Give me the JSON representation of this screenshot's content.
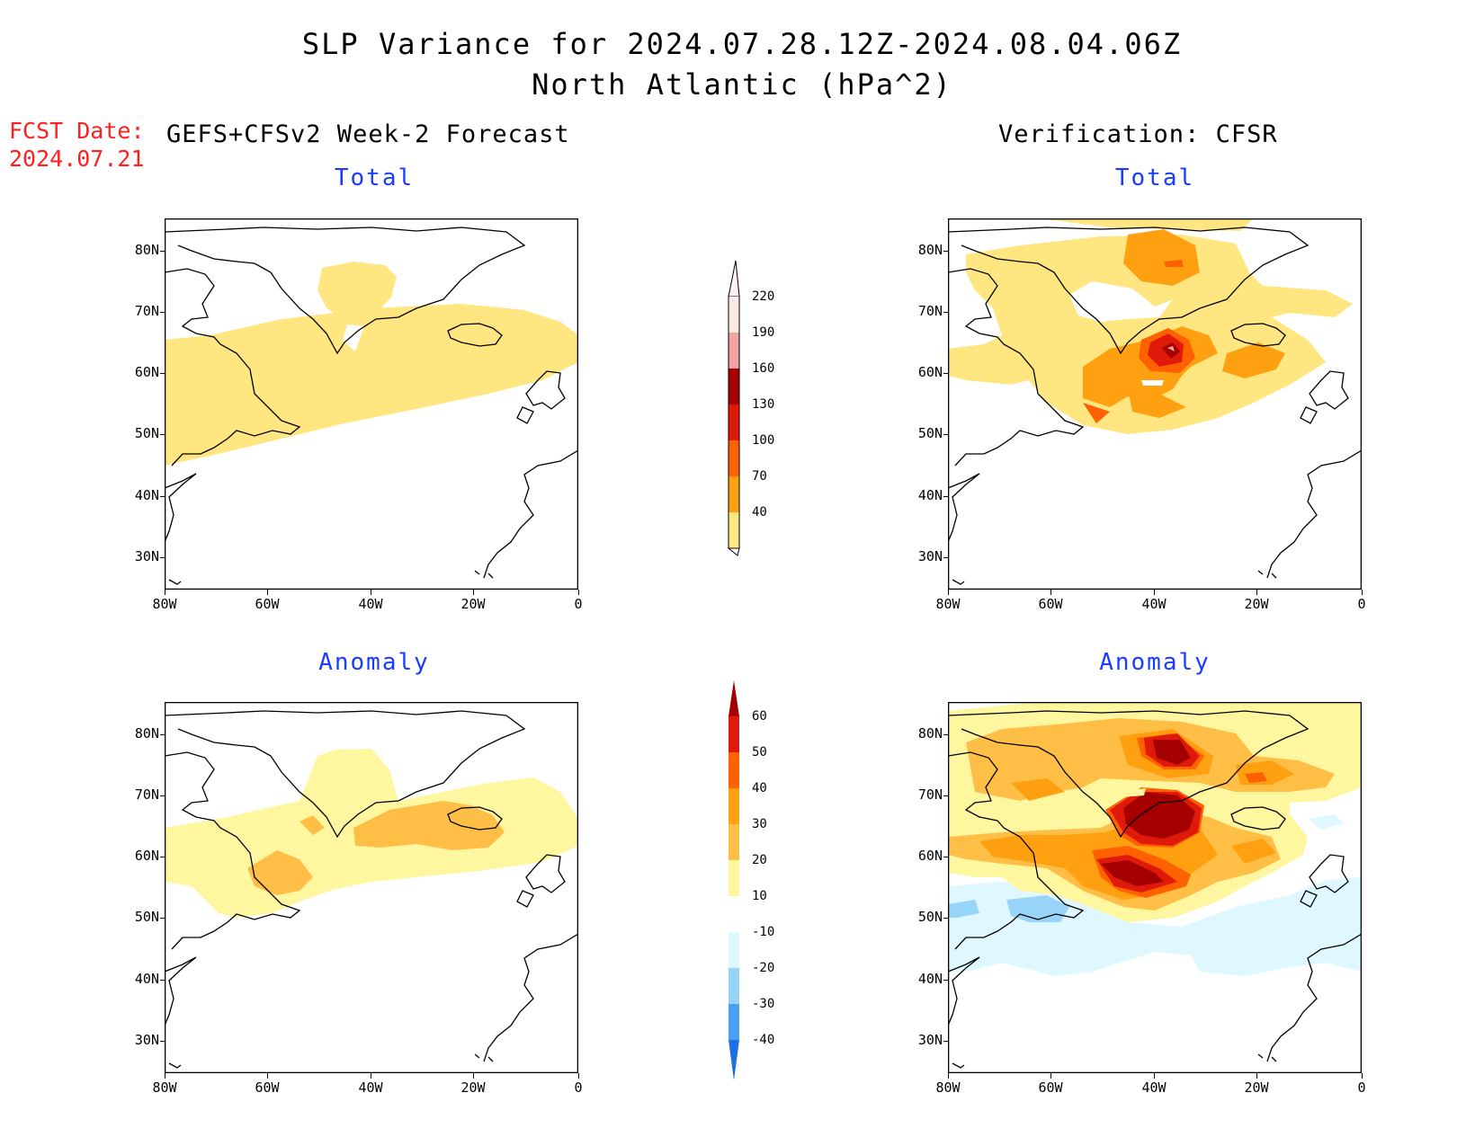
{
  "title": {
    "line1": "SLP Variance for 2024.07.28.12Z-2024.08.04.06Z",
    "line2": "North Atlantic (hPa^2)"
  },
  "forecast_date": {
    "label": "FCST Date:",
    "value": "2024.07.21"
  },
  "columns": {
    "left_header": "GEFS+CFSv2 Week-2 Forecast",
    "right_header": "Verification: CFSR"
  },
  "panels": {
    "fcst_total_title": "Total",
    "fcst_anom_title": "Anomaly",
    "ver_total_title": "Total",
    "ver_anom_title": "Anomaly"
  },
  "axes": {
    "lat_labels": [
      "80N",
      "70N",
      "60N",
      "50N",
      "40N",
      "30N"
    ],
    "lon_labels": [
      "80W",
      "60W",
      "40W",
      "20W",
      "0"
    ]
  },
  "colorbars": {
    "total": {
      "labels": [
        "220",
        "190",
        "160",
        "130",
        "100",
        "70",
        "40"
      ],
      "colors": [
        "#fce8e4",
        "#f2a2a2",
        "#a50000",
        "#e01a0a",
        "#ff6000",
        "#ffa010",
        "#ffe680"
      ]
    },
    "anomaly": {
      "labels": [
        "60",
        "50",
        "40",
        "30",
        "20",
        "10",
        "-10",
        "-20",
        "-30",
        "-40"
      ],
      "colors": [
        "#a50000",
        "#e01a0a",
        "#ff6000",
        "#ffa010",
        "#ffbe46",
        "#fff7a0",
        "#ffffff",
        "#dff8ff",
        "#96d4f8",
        "#4aa0f0",
        "#1e6ee6"
      ]
    }
  }
}
